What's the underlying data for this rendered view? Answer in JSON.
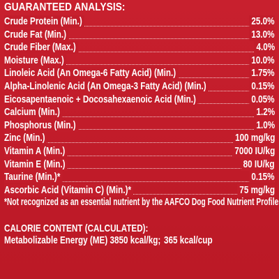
{
  "heading": "GUARANTEED ANALYSIS:",
  "rows": [
    {
      "label": "Crude Protein (Min.)",
      "value": "25.0%"
    },
    {
      "label": "Crude Fat (Min.)",
      "value": "13.0%"
    },
    {
      "label": "Crude Fiber (Max.)",
      "value": "4.0%"
    },
    {
      "label": "Moisture (Max.)",
      "value": "10.0%"
    },
    {
      "label": "Linoleic Acid (An Omega-6 Fatty Acid) (Min.)",
      "value": "1.75%"
    },
    {
      "label": "Alpha-Linolenic Acid (An Omega-3 Fatty Acid) (Min.)",
      "value": "0.15%"
    },
    {
      "label": "Eicosapentaenoic + Docosahexaenoic Acid (Min.)",
      "value": "0.05%"
    },
    {
      "label": "Calcium (Min.)",
      "value": "1.2%"
    },
    {
      "label": "Phosphorus (Min.)",
      "value": "1.0%"
    },
    {
      "label": "Zinc (Min.)",
      "value": "100 mg/kg"
    },
    {
      "label": "Vitamin A (Min.)",
      "value": "7000 IU/kg"
    },
    {
      "label": "Vitamin E (Min.)",
      "value": "80 IU/kg"
    },
    {
      "label": "Taurine (Min.)*",
      "value": "0.15%"
    },
    {
      "label": "Ascorbic Acid (Vitamin C) (Min.)*",
      "value": "75 mg/kg"
    }
  ],
  "footnote": "*Not recognized as an essential nutrient by the AAFCO Dog Food Nutrient Profiles.",
  "calorie": {
    "heading": "CALORIE CONTENT (CALCULATED):",
    "line_part1": "Metabolizable Energy (ME) 3850 kcal/kg;",
    "line_part2": "365 kcal/cup"
  }
}
